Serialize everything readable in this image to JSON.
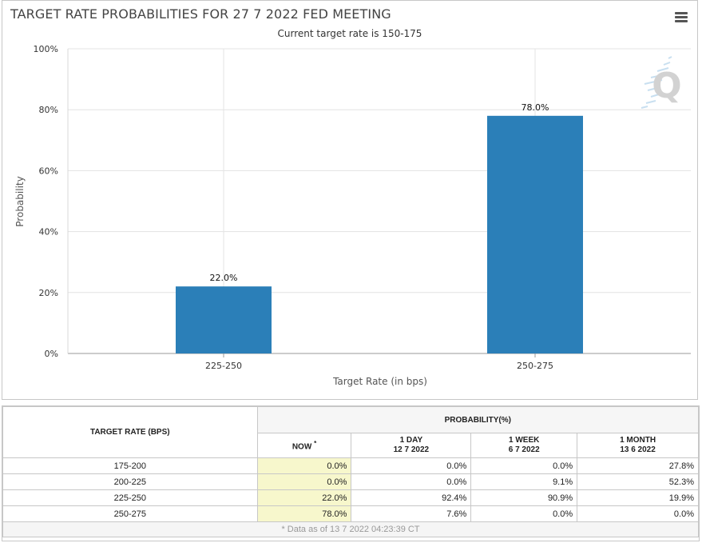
{
  "chart": {
    "title": "TARGET RATE PROBABILITIES FOR 27 7 2022 FED MEETING",
    "subtitle": "Current target rate is 150-175",
    "logo_letter": "Q"
  },
  "chart_data": {
    "type": "bar",
    "title": "TARGET RATE PROBABILITIES FOR 27 7 2022 FED MEETING",
    "subtitle": "Current target rate is 150-175",
    "xlabel": "Target Rate (in bps)",
    "ylabel": "Probability",
    "categories": [
      "225-250",
      "250-275"
    ],
    "values": [
      22.0,
      78.0
    ],
    "data_labels": [
      "22.0%",
      "78.0%"
    ],
    "ylim": [
      0,
      100
    ],
    "yticks": [
      "0%",
      "20%",
      "40%",
      "60%",
      "80%",
      "100%"
    ],
    "grid": true,
    "legend": "none",
    "bar_color": "#2b7fb8"
  },
  "table": {
    "target_rate_header": "TARGET RATE (BPS)",
    "probability_header": "PROBABILITY(%)",
    "columns": [
      {
        "label": "NOW",
        "sup": "*",
        "date": ""
      },
      {
        "label": "1 DAY",
        "date": "12 7 2022"
      },
      {
        "label": "1 WEEK",
        "date": "6 7 2022"
      },
      {
        "label": "1 MONTH",
        "date": "13 6 2022"
      }
    ],
    "rows": [
      {
        "rate": "175-200",
        "now": "0.0%",
        "day": "0.0%",
        "week": "0.0%",
        "month": "27.8%"
      },
      {
        "rate": "200-225",
        "now": "0.0%",
        "day": "0.0%",
        "week": "9.1%",
        "month": "52.3%"
      },
      {
        "rate": "225-250",
        "now": "22.0%",
        "day": "92.4%",
        "week": "90.9%",
        "month": "19.9%"
      },
      {
        "rate": "250-275",
        "now": "78.0%",
        "day": "7.6%",
        "week": "0.0%",
        "month": "0.0%"
      }
    ],
    "footnote": "* Data as of 13 7 2022 04:23:39 CT"
  }
}
